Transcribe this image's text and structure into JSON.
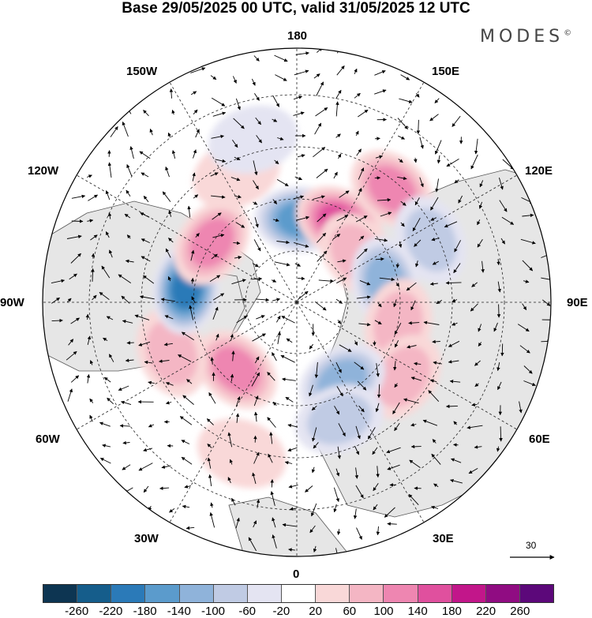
{
  "title": "Base 29/05/2025 00 UTC, valid 31/05/2025 12 UTC",
  "brand": "MODES",
  "brand_mark": "©",
  "longitude_labels": [
    "180",
    "150E",
    "120E",
    "90E",
    "60E",
    "30E",
    "0",
    "30W",
    "60W",
    "90W",
    "120W",
    "150W"
  ],
  "reference_vector": "30",
  "colorbar": {
    "ticks": [
      "-260",
      "-220",
      "-180",
      "-140",
      "-100",
      "-60",
      "-20",
      "20",
      "60",
      "100",
      "140",
      "180",
      "220",
      "260"
    ],
    "colors": [
      "#0d3552",
      "#155d8b",
      "#2b7ab8",
      "#5b9bcc",
      "#8fb3da",
      "#c0cbe4",
      "#e4e4f2",
      "#ffffff",
      "#f9d8d8",
      "#f4b6c4",
      "#ee86b1",
      "#e0509e",
      "#c2168a",
      "#900c82",
      "#5c087a"
    ]
  },
  "anomaly_centers": [
    {
      "lon": 178,
      "lat": 58,
      "value": -190
    },
    {
      "lon": 152,
      "lat": 55,
      "value": 170
    },
    {
      "lon": 140,
      "lat": 33,
      "value": 140
    },
    {
      "lon": 128,
      "lat": 60,
      "value": 110
    },
    {
      "lon": 115,
      "lat": 33,
      "value": -80
    },
    {
      "lon": 103,
      "lat": 55,
      "value": -150
    },
    {
      "lon": 78,
      "lat": 50,
      "value": 90
    },
    {
      "lon": 55,
      "lat": 40,
      "value": 110
    },
    {
      "lon": 30,
      "lat": 55,
      "value": -150
    },
    {
      "lon": 20,
      "lat": 42,
      "value": -110
    },
    {
      "lon": 340,
      "lat": 28,
      "value": 50
    },
    {
      "lon": 318,
      "lat": 55,
      "value": 140
    },
    {
      "lon": 292,
      "lat": 38,
      "value": 90
    },
    {
      "lon": 263,
      "lat": 47,
      "value": -220
    },
    {
      "lon": 235,
      "lat": 50,
      "value": 140
    },
    {
      "lon": 205,
      "lat": 35,
      "value": 60
    },
    {
      "lon": 195,
      "lat": 25,
      "value": -60
    }
  ]
}
